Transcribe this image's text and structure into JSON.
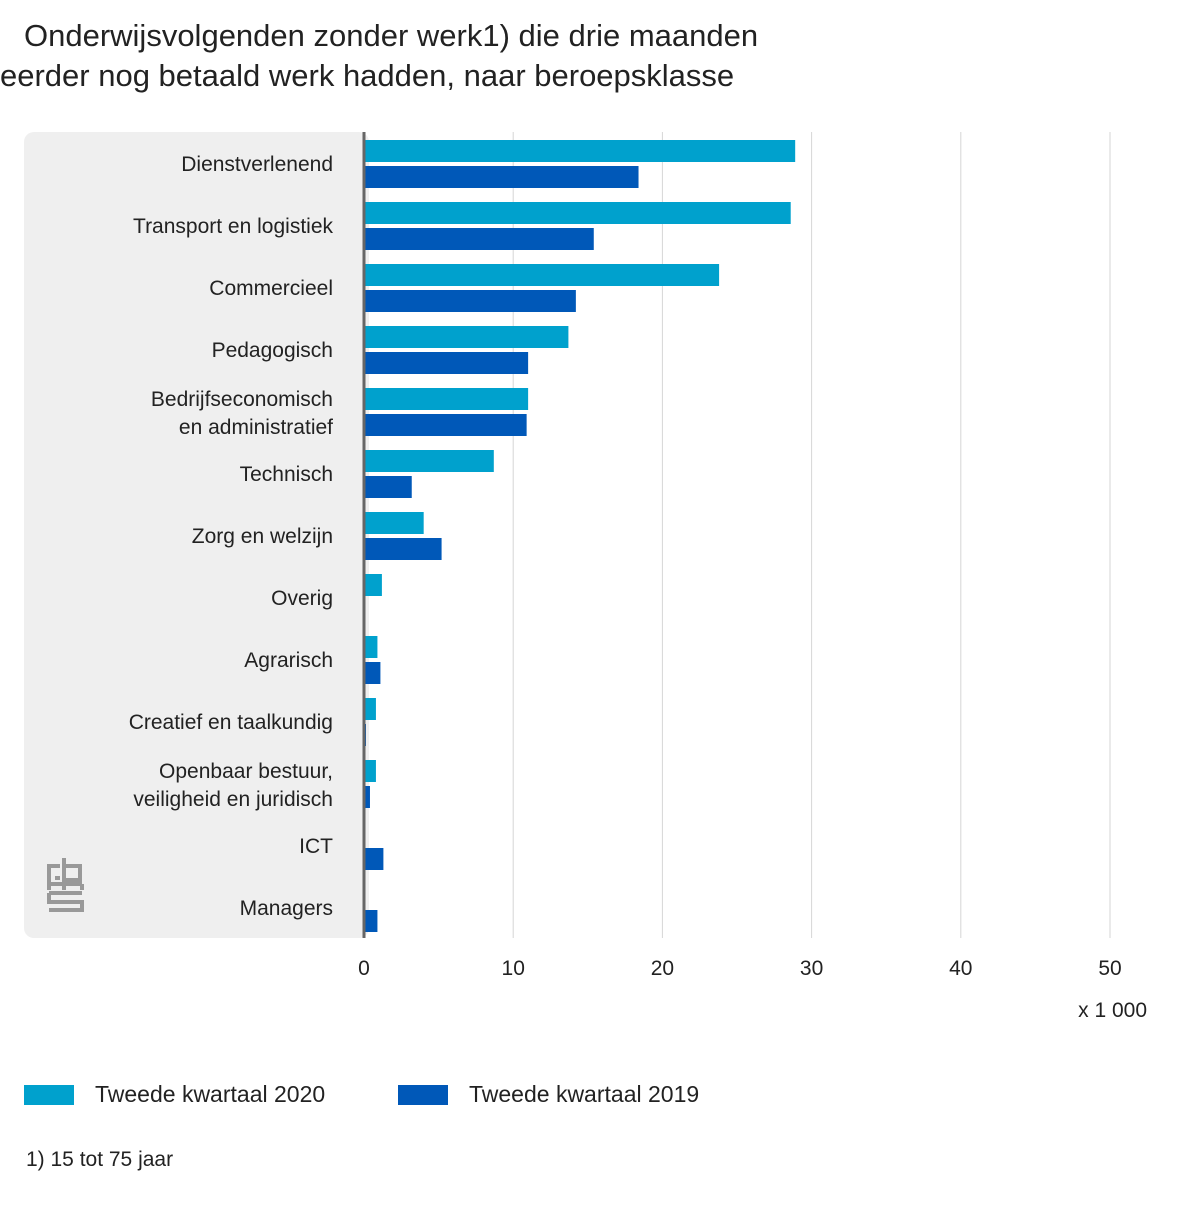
{
  "chart_data": {
    "type": "bar",
    "orientation": "horizontal",
    "title": [
      "Onderwijsvolgenden zonder werk1) die drie maanden",
      "eerder nog betaald werk hadden, naar beroepsklasse"
    ],
    "categories": [
      [
        "Dienstverlenend"
      ],
      [
        "Transport en logistiek"
      ],
      [
        "Commercieel"
      ],
      [
        "Pedagogisch"
      ],
      [
        "Bedrijfseconomisch",
        "en administratief"
      ],
      [
        "Technisch"
      ],
      [
        "Zorg en welzijn"
      ],
      [
        "Overig"
      ],
      [
        "Agrarisch"
      ],
      [
        "Creatief en taalkundig"
      ],
      [
        "Openbaar bestuur,",
        "veiligheid en juridisch"
      ],
      [
        "ICT"
      ],
      [
        "Managers"
      ]
    ],
    "series": [
      {
        "name": "Tweede kwartaal 2020",
        "color": "#00a1cd",
        "values": [
          28.9,
          28.6,
          23.8,
          13.7,
          11.0,
          8.7,
          4.0,
          1.2,
          0.9,
          0.8,
          0.8,
          null,
          null
        ]
      },
      {
        "name": "Tweede kwartaal 2019",
        "color": "#0058b8",
        "values": [
          18.4,
          15.4,
          14.2,
          11.0,
          10.9,
          3.2,
          5.2,
          null,
          1.1,
          0.1,
          0.4,
          1.3,
          0.9
        ]
      }
    ],
    "xlim": [
      0,
      50
    ],
    "xticks": [
      "0",
      "10",
      "20",
      "30",
      "40",
      "50"
    ],
    "xlabel": "x 1 000",
    "grid": true,
    "legend_position": "bottom-left",
    "footnote": "1) 15 tot 75 jaar",
    "logo_text": "cbs"
  }
}
